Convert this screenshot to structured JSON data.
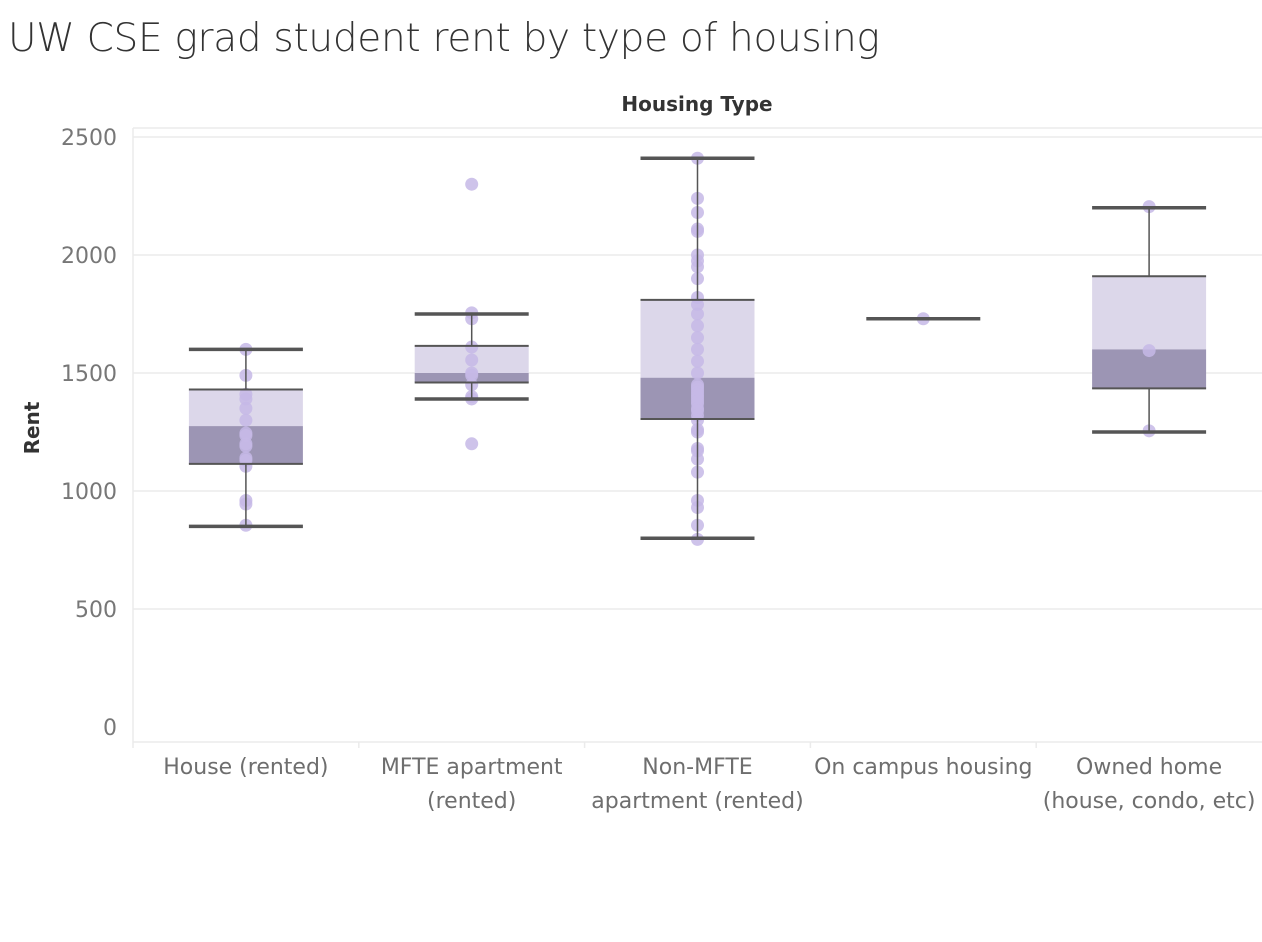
{
  "title": "UW CSE grad student rent by type of housing",
  "chart_data": {
    "type": "boxplot",
    "x_axis_title": "Housing Type",
    "y_axis_title": "Rent",
    "ylim": [
      -40,
      2540
    ],
    "yticks": [
      0,
      500,
      1000,
      1500,
      2000,
      2500
    ],
    "grid": true,
    "colors": {
      "point": "#c6b8e6",
      "box_upper": "#dcd7ea",
      "box_lower": "#9c95b4",
      "line": "#555555",
      "grid": "#ebebeb"
    },
    "categories": [
      {
        "label": [
          "House (rented)"
        ],
        "whisker_high": 1600,
        "q3": 1430,
        "median": 1275,
        "q1": 1115,
        "whisker_low": 850,
        "points": [
          1600,
          1490,
          1410,
          1390,
          1350,
          1300,
          1245,
          1235,
          1200,
          1190,
          1140,
          1130,
          1105,
          960,
          945,
          855
        ]
      },
      {
        "label": [
          "MFTE apartment",
          "(rented)"
        ],
        "whisker_high": 1750,
        "q3": 1615,
        "median": 1500,
        "q1": 1460,
        "whisker_low": 1390,
        "points": [
          2300,
          1755,
          1730,
          1610,
          1555,
          1500,
          1490,
          1450,
          1400,
          1390,
          1200
        ]
      },
      {
        "label": [
          "Non-MFTE",
          "apartment (rented)"
        ],
        "whisker_high": 2410,
        "q3": 1810,
        "median": 1480,
        "q1": 1305,
        "whisker_low": 800,
        "points": [
          2410,
          2240,
          2180,
          2110,
          2100,
          2000,
          1975,
          1950,
          1900,
          1820,
          1790,
          1750,
          1700,
          1650,
          1600,
          1550,
          1500,
          1450,
          1440,
          1430,
          1420,
          1410,
          1400,
          1390,
          1380,
          1370,
          1350,
          1340,
          1320,
          1300,
          1260,
          1250,
          1180,
          1170,
          1135,
          1080,
          960,
          930,
          855,
          795
        ]
      },
      {
        "label": [
          "On campus housing"
        ],
        "whisker_high": 1730,
        "q3": 1730,
        "median": 1730,
        "q1": 1730,
        "whisker_low": 1730,
        "points": [
          1730
        ]
      },
      {
        "label": [
          "Owned home",
          "(house, condo, etc)"
        ],
        "whisker_high": 2200,
        "q3": 1910,
        "median": 1600,
        "q1": 1435,
        "whisker_low": 1250,
        "points": [
          2205,
          1595,
          1255
        ]
      }
    ]
  }
}
